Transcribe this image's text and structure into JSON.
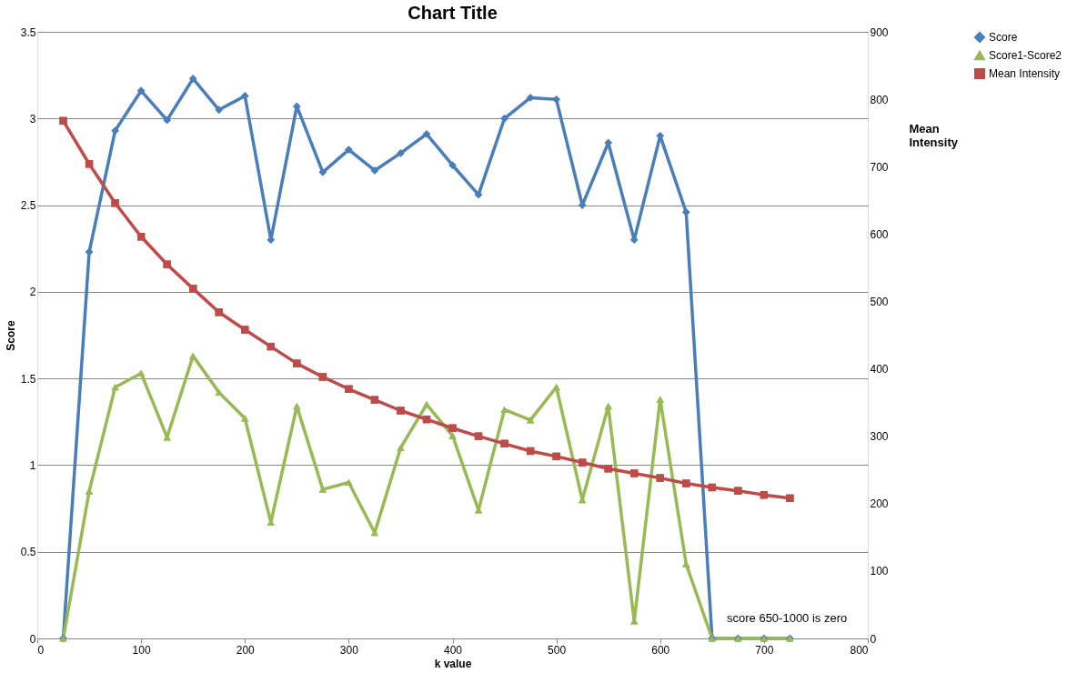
{
  "chart_data": {
    "type": "line",
    "title": "Chart Title",
    "xlabel": "k value",
    "ylabel": "Score",
    "y2label": "Mean Intensity",
    "x": [
      25,
      50,
      75,
      100,
      125,
      150,
      175,
      200,
      225,
      250,
      275,
      300,
      325,
      350,
      375,
      400,
      425,
      450,
      475,
      500,
      525,
      550,
      575,
      600,
      625,
      650,
      675,
      700,
      725
    ],
    "series": [
      {
        "name": "Score",
        "color": "#4a7ebb",
        "marker": "diamond",
        "values": [
          0,
          2.23,
          2.93,
          3.16,
          2.99,
          3.23,
          3.05,
          3.13,
          2.3,
          3.07,
          2.69,
          2.82,
          2.7,
          2.8,
          2.91,
          2.73,
          2.56,
          3.0,
          3.12,
          3.11,
          2.5,
          2.86,
          2.3,
          2.9,
          2.46,
          0,
          0,
          0,
          0
        ]
      },
      {
        "name": "Score1-Score2",
        "color": "#98b954",
        "marker": "triangle",
        "values": [
          0,
          0.85,
          1.45,
          1.53,
          1.16,
          1.63,
          1.42,
          1.27,
          0.67,
          1.34,
          0.86,
          0.9,
          0.61,
          1.1,
          1.35,
          1.17,
          0.74,
          1.32,
          1.26,
          1.45,
          0.8,
          1.34,
          0.1,
          1.38,
          0.43,
          0,
          0,
          0,
          0
        ]
      },
      {
        "name": "Mean Intensity",
        "color": "#be4b48",
        "marker": "square",
        "axis": "y2",
        "values": [
          768,
          704,
          646,
          596,
          555,
          519,
          484,
          458,
          433,
          408,
          388,
          370,
          354,
          338,
          325,
          312,
          300,
          289,
          278,
          270,
          261,
          252,
          245,
          238,
          230,
          224,
          219,
          213,
          208
        ]
      }
    ],
    "xlim": [
      0,
      800
    ],
    "xticks": [
      0,
      100,
      200,
      300,
      400,
      500,
      600,
      700,
      800
    ],
    "ylim": [
      0,
      3.5
    ],
    "yticks": [
      0,
      0.5,
      1,
      1.5,
      2,
      2.5,
      3,
      3.5
    ],
    "y2lim": [
      0,
      900
    ],
    "y2ticks": [
      0,
      100,
      200,
      300,
      400,
      500,
      600,
      700,
      800,
      900
    ],
    "grid": "y",
    "legend": "right",
    "line_style": "solid",
    "annotations": [
      "score 650-1000 is zero"
    ]
  }
}
